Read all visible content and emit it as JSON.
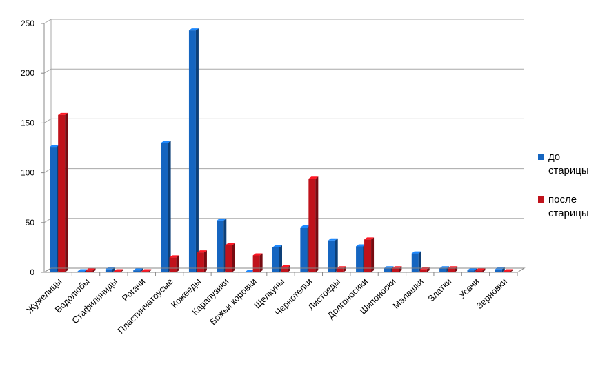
{
  "chart_data": {
    "type": "bar",
    "categories": [
      "Жужелицы",
      "Водолюбы",
      "Стафилиниды",
      "Рогачи",
      "Пластинчатоусые",
      "Кожееды",
      "Карапузики",
      "Божьи коровки",
      "Щелкуны",
      "Чернотелки",
      "Листоеды",
      "Долгоносики",
      "Шипоноски",
      "Малашки",
      "Златки",
      "Усачи",
      "Зерновки"
    ],
    "series": [
      {
        "name": "до старицы",
        "color": "#1565c0",
        "values": [
          126,
          1,
          3,
          2,
          130,
          243,
          52,
          0,
          25,
          45,
          32,
          26,
          4,
          19,
          4,
          2,
          3
        ]
      },
      {
        "name": "после старицы",
        "color": "#c0121b",
        "values": [
          158,
          2,
          1,
          1,
          15,
          20,
          27,
          17,
          5,
          94,
          4,
          33,
          4,
          3,
          4,
          2,
          1
        ]
      }
    ],
    "yticks": [
      "0",
      "50",
      "100",
      "150",
      "200",
      "250"
    ],
    "ylim": [
      0,
      250
    ],
    "grid": true,
    "legend_position": "right",
    "legend": {
      "items": [
        {
          "lines": [
            "до",
            "старицы"
          ],
          "color": "#1565c0"
        },
        {
          "lines": [
            "после",
            "старицы"
          ],
          "color": "#c0121b"
        }
      ]
    }
  }
}
